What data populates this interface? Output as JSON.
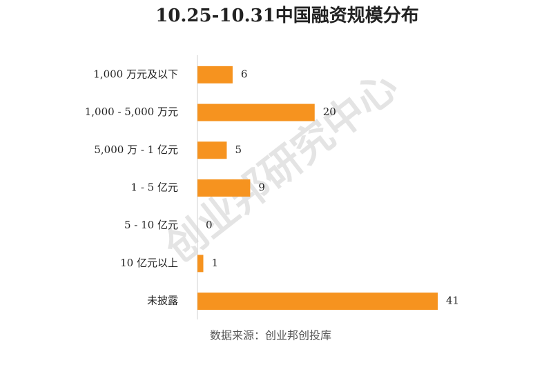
{
  "chart_data": {
    "type": "bar",
    "orientation": "horizontal",
    "title": "10.25-10.31中国融资规模分布",
    "categories": [
      "1,000 万元及以下",
      "1,000 - 5,000 万元",
      "5,000 万 - 1 亿元",
      "1 - 5 亿元",
      "5 - 10 亿元",
      "10 亿元以上",
      "未披露"
    ],
    "values": [
      6,
      20,
      5,
      9,
      0,
      1,
      41
    ],
    "color": "#f6931f",
    "source": "数据来源：创业邦创投库",
    "watermark": "创业邦研究中心"
  }
}
